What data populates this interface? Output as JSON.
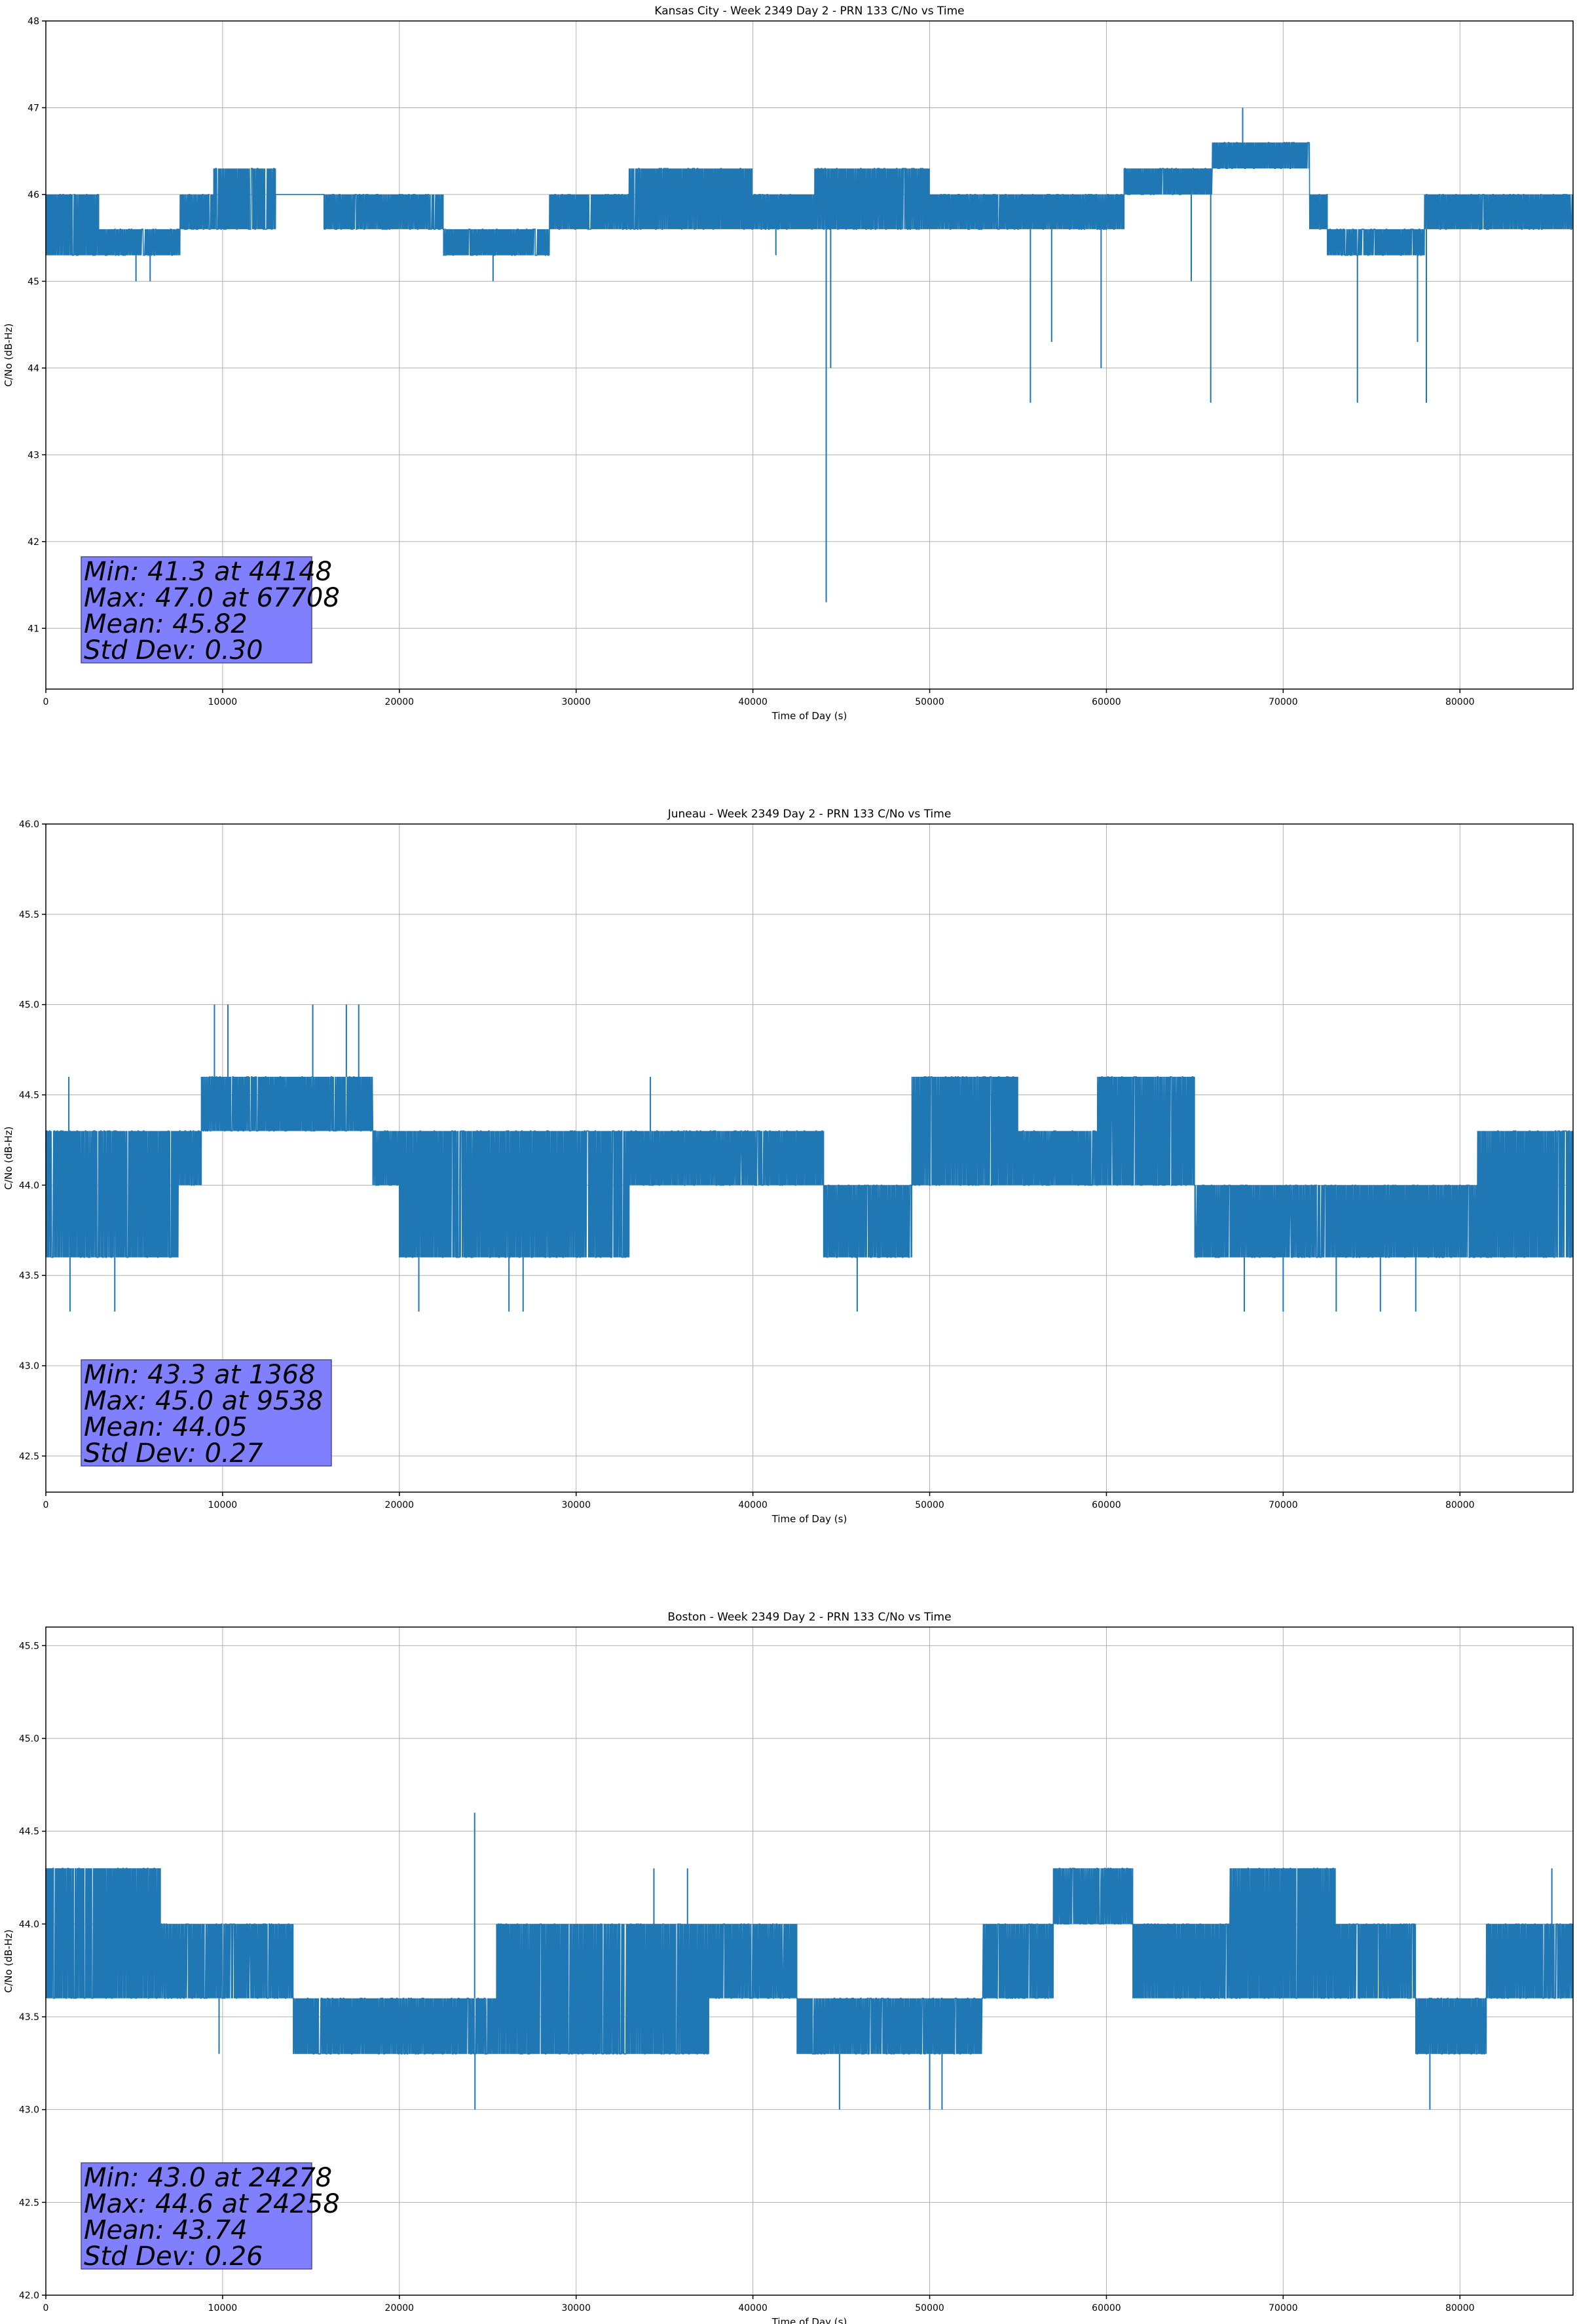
{
  "chart_data": [
    {
      "type": "line",
      "title": "Kansas City - Week 2349 Day 2 - PRN 133 C/No vs Time",
      "xlabel": "Time of Day (s)",
      "ylabel": "C/No (dB-Hz)",
      "xlim": [
        0,
        86400
      ],
      "ylim": [
        40.3,
        48.0
      ],
      "xticks": [
        0,
        10000,
        20000,
        30000,
        40000,
        50000,
        60000,
        70000,
        80000
      ],
      "yticks": [
        41,
        42,
        43,
        44,
        45,
        46,
        47,
        48
      ],
      "ytick_labels": [
        "41",
        "42",
        "43",
        "44",
        "45",
        "46",
        "47",
        "48"
      ],
      "grid": true,
      "color": "#1f77b4",
      "stats": [
        "Min: 41.3 at 44148",
        "Max: 47.0 at 67708",
        "Mean: 45.82",
        "Std Dev: 0.30"
      ],
      "segments": [
        {
          "x0": 0,
          "x1": 3000,
          "lo": 45.3,
          "hi": 46.0
        },
        {
          "x0": 3000,
          "x1": 7600,
          "lo": 45.3,
          "hi": 45.6
        },
        {
          "x0": 7600,
          "x1": 9500,
          "lo": 45.6,
          "hi": 46.0
        },
        {
          "x0": 9500,
          "x1": 13000,
          "lo": 45.6,
          "hi": 46.3
        },
        {
          "x0": 13000,
          "x1": 15700,
          "lo": 46.0,
          "hi": 46.0
        },
        {
          "x0": 15700,
          "x1": 22500,
          "lo": 45.6,
          "hi": 46.0
        },
        {
          "x0": 22500,
          "x1": 28500,
          "lo": 45.3,
          "hi": 45.6
        },
        {
          "x0": 28500,
          "x1": 33000,
          "lo": 45.6,
          "hi": 46.0
        },
        {
          "x0": 33000,
          "x1": 40000,
          "lo": 45.6,
          "hi": 46.3
        },
        {
          "x0": 40000,
          "x1": 43500,
          "lo": 45.6,
          "hi": 46.0
        },
        {
          "x0": 43500,
          "x1": 50000,
          "lo": 45.6,
          "hi": 46.3
        },
        {
          "x0": 50000,
          "x1": 61000,
          "lo": 45.6,
          "hi": 46.0
        },
        {
          "x0": 61000,
          "x1": 66000,
          "lo": 46.0,
          "hi": 46.3
        },
        {
          "x0": 66000,
          "x1": 71500,
          "lo": 46.3,
          "hi": 46.6
        },
        {
          "x0": 71500,
          "x1": 72500,
          "lo": 45.6,
          "hi": 46.0
        },
        {
          "x0": 72500,
          "x1": 78000,
          "lo": 45.3,
          "hi": 45.6
        },
        {
          "x0": 78000,
          "x1": 86400,
          "lo": 45.6,
          "hi": 46.0
        }
      ],
      "spikes": [
        {
          "x": 44148,
          "y": 41.3
        },
        {
          "x": 44400,
          "y": 44.0
        },
        {
          "x": 55700,
          "y": 43.6
        },
        {
          "x": 56900,
          "y": 44.3
        },
        {
          "x": 59700,
          "y": 44.0
        },
        {
          "x": 65900,
          "y": 43.6
        },
        {
          "x": 67708,
          "y": 47.0
        },
        {
          "x": 74200,
          "y": 43.6
        },
        {
          "x": 77600,
          "y": 44.3
        },
        {
          "x": 78100,
          "y": 43.6
        },
        {
          "x": 5100,
          "y": 45.0
        },
        {
          "x": 5900,
          "y": 45.0
        },
        {
          "x": 25300,
          "y": 45.0
        },
        {
          "x": 41300,
          "y": 45.3
        },
        {
          "x": 64800,
          "y": 45.0
        }
      ]
    },
    {
      "type": "line",
      "title": "Juneau - Week 2349 Day 2 - PRN 133 C/No vs Time",
      "xlabel": "Time of Day (s)",
      "ylabel": "C/No (dB-Hz)",
      "xlim": [
        0,
        86400
      ],
      "ylim": [
        42.3,
        46.0
      ],
      "xticks": [
        0,
        10000,
        20000,
        30000,
        40000,
        50000,
        60000,
        70000,
        80000
      ],
      "yticks": [
        42.5,
        43.0,
        43.5,
        44.0,
        44.5,
        45.0,
        45.5,
        46.0
      ],
      "ytick_labels": [
        "42.5",
        "43.0",
        "43.5",
        "44.0",
        "44.5",
        "45.0",
        "45.5",
        "46.0"
      ],
      "grid": true,
      "color": "#1f77b4",
      "stats": [
        "Min: 43.3 at 1368",
        "Max: 45.0 at 9538",
        "Mean: 44.05",
        "Std Dev: 0.27"
      ],
      "segments": [
        {
          "x0": 0,
          "x1": 7500,
          "lo": 43.6,
          "hi": 44.3
        },
        {
          "x0": 7500,
          "x1": 8800,
          "lo": 44.0,
          "hi": 44.3
        },
        {
          "x0": 8800,
          "x1": 18500,
          "lo": 44.3,
          "hi": 44.6
        },
        {
          "x0": 18500,
          "x1": 20000,
          "lo": 44.0,
          "hi": 44.3
        },
        {
          "x0": 20000,
          "x1": 33000,
          "lo": 43.6,
          "hi": 44.3
        },
        {
          "x0": 33000,
          "x1": 44000,
          "lo": 44.0,
          "hi": 44.3
        },
        {
          "x0": 44000,
          "x1": 49000,
          "lo": 43.6,
          "hi": 44.0
        },
        {
          "x0": 49000,
          "x1": 55000,
          "lo": 44.0,
          "hi": 44.6
        },
        {
          "x0": 55000,
          "x1": 59500,
          "lo": 44.0,
          "hi": 44.3
        },
        {
          "x0": 59500,
          "x1": 65000,
          "lo": 44.0,
          "hi": 44.6
        },
        {
          "x0": 65000,
          "x1": 74500,
          "lo": 43.6,
          "hi": 44.0
        },
        {
          "x0": 74500,
          "x1": 81000,
          "lo": 43.6,
          "hi": 44.0
        },
        {
          "x0": 81000,
          "x1": 86400,
          "lo": 43.6,
          "hi": 44.3
        }
      ],
      "spikes": [
        {
          "x": 1368,
          "y": 43.3
        },
        {
          "x": 3900,
          "y": 43.3
        },
        {
          "x": 9538,
          "y": 45.0
        },
        {
          "x": 10300,
          "y": 45.0
        },
        {
          "x": 15100,
          "y": 45.0
        },
        {
          "x": 17000,
          "y": 45.0
        },
        {
          "x": 17700,
          "y": 45.0
        },
        {
          "x": 21100,
          "y": 43.3
        },
        {
          "x": 26200,
          "y": 43.3
        },
        {
          "x": 27000,
          "y": 43.3
        },
        {
          "x": 34200,
          "y": 44.6
        },
        {
          "x": 45900,
          "y": 43.3
        },
        {
          "x": 67800,
          "y": 43.3
        },
        {
          "x": 70000,
          "y": 43.3
        },
        {
          "x": 73000,
          "y": 43.3
        },
        {
          "x": 75500,
          "y": 43.3
        },
        {
          "x": 77500,
          "y": 43.3
        },
        {
          "x": 1300,
          "y": 44.6
        }
      ]
    },
    {
      "type": "line",
      "title": "Boston - Week 2349 Day 2 - PRN 133 C/No vs Time",
      "xlabel": "Time of Day (s)",
      "ylabel": "C/No (dB-Hz)",
      "xlim": [
        0,
        86400
      ],
      "ylim": [
        42.0,
        45.6
      ],
      "xticks": [
        0,
        10000,
        20000,
        30000,
        40000,
        50000,
        60000,
        70000,
        80000
      ],
      "yticks": [
        42.0,
        42.5,
        43.0,
        43.5,
        44.0,
        44.5,
        45.0,
        45.5
      ],
      "ytick_labels": [
        "42.0",
        "42.5",
        "43.0",
        "43.5",
        "44.0",
        "44.5",
        "45.0",
        "45.5"
      ],
      "grid": true,
      "color": "#1f77b4",
      "stats": [
        "Min: 43.0 at 24278",
        "Max: 44.6 at 24258",
        "Mean: 43.74",
        "Std Dev: 0.26"
      ],
      "segments": [
        {
          "x0": 0,
          "x1": 6500,
          "lo": 43.6,
          "hi": 44.3
        },
        {
          "x0": 6500,
          "x1": 9500,
          "lo": 43.6,
          "hi": 44.0
        },
        {
          "x0": 9500,
          "x1": 14000,
          "lo": 43.6,
          "hi": 44.0
        },
        {
          "x0": 14000,
          "x1": 25500,
          "lo": 43.3,
          "hi": 43.6
        },
        {
          "x0": 25500,
          "x1": 37500,
          "lo": 43.3,
          "hi": 44.0
        },
        {
          "x0": 37500,
          "x1": 42500,
          "lo": 43.6,
          "hi": 44.0
        },
        {
          "x0": 42500,
          "x1": 53000,
          "lo": 43.3,
          "hi": 43.6
        },
        {
          "x0": 53000,
          "x1": 57000,
          "lo": 43.6,
          "hi": 44.0
        },
        {
          "x0": 57000,
          "x1": 61500,
          "lo": 44.0,
          "hi": 44.3
        },
        {
          "x0": 61500,
          "x1": 67000,
          "lo": 43.6,
          "hi": 44.0
        },
        {
          "x0": 67000,
          "x1": 73000,
          "lo": 43.6,
          "hi": 44.3
        },
        {
          "x0": 73000,
          "x1": 77500,
          "lo": 43.6,
          "hi": 44.0
        },
        {
          "x0": 77500,
          "x1": 81500,
          "lo": 43.3,
          "hi": 43.6
        },
        {
          "x0": 81500,
          "x1": 86400,
          "lo": 43.6,
          "hi": 44.0
        }
      ],
      "spikes": [
        {
          "x": 24258,
          "y": 44.6
        },
        {
          "x": 24278,
          "y": 43.0
        },
        {
          "x": 44900,
          "y": 43.0
        },
        {
          "x": 50000,
          "y": 43.0
        },
        {
          "x": 50700,
          "y": 43.0
        },
        {
          "x": 78300,
          "y": 43.0
        },
        {
          "x": 34400,
          "y": 44.3
        },
        {
          "x": 36300,
          "y": 44.3
        },
        {
          "x": 9800,
          "y": 43.3
        },
        {
          "x": 85200,
          "y": 44.3
        }
      ]
    }
  ]
}
